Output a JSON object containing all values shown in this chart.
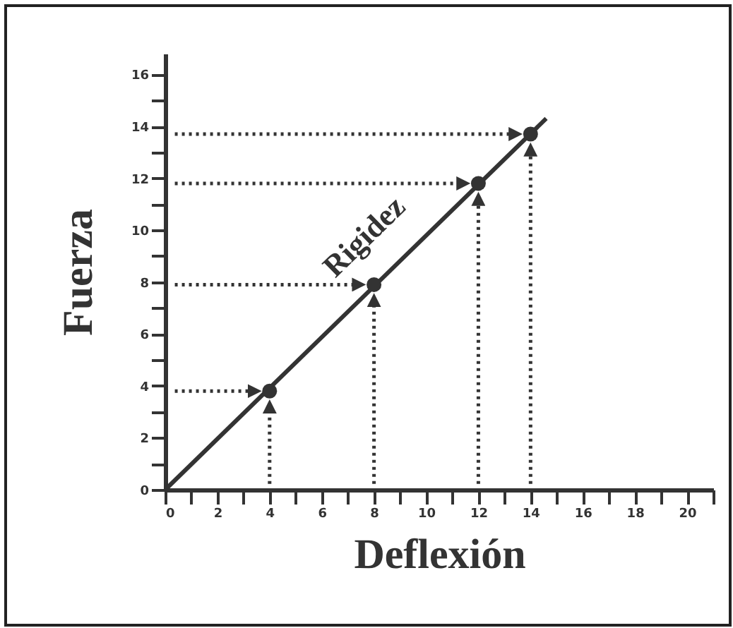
{
  "chart_data": {
    "type": "scatter",
    "xlabel": "Deflexión",
    "ylabel": "Fuerza",
    "xlim": [
      0,
      21
    ],
    "ylim": [
      0,
      16.8
    ],
    "xticks": [
      0,
      {
        "value": 1,
        "label": null
      },
      2,
      {
        "value": 3,
        "label": null
      },
      4,
      {
        "value": 5,
        "label": null
      },
      6,
      {
        "value": 7,
        "label": null
      },
      8,
      {
        "value": 9,
        "label": null
      },
      10,
      {
        "value": 11,
        "label": null
      },
      12,
      {
        "value": 13,
        "label": null
      },
      14,
      {
        "value": 15,
        "label": null
      },
      16,
      {
        "value": 17,
        "label": null
      },
      18,
      {
        "value": 19,
        "label": null
      },
      20,
      {
        "value": 21,
        "label": null
      }
    ],
    "yticks": [
      0,
      {
        "value": 1,
        "label": null
      },
      2,
      {
        "value": 3,
        "label": null
      },
      4,
      {
        "value": 5,
        "label": null
      },
      6,
      {
        "value": 7,
        "label": null
      },
      8,
      {
        "value": 9,
        "label": null
      },
      10,
      {
        "value": 11,
        "label": null
      },
      12,
      {
        "value": 13,
        "label": null
      },
      14,
      {
        "value": 15,
        "label": null
      },
      16
    ],
    "series": [
      {
        "type": "line",
        "name": "Rigidez",
        "color": "#333333",
        "marker": "none",
        "x": [
          0,
          14.6
        ],
        "values": [
          0,
          14.3
        ]
      },
      {
        "color": "#333333",
        "marker": "circle",
        "x": [
          4,
          8,
          12,
          14
        ],
        "values": [
          3.8,
          7.9,
          11.8,
          13.7
        ]
      }
    ]
  }
}
